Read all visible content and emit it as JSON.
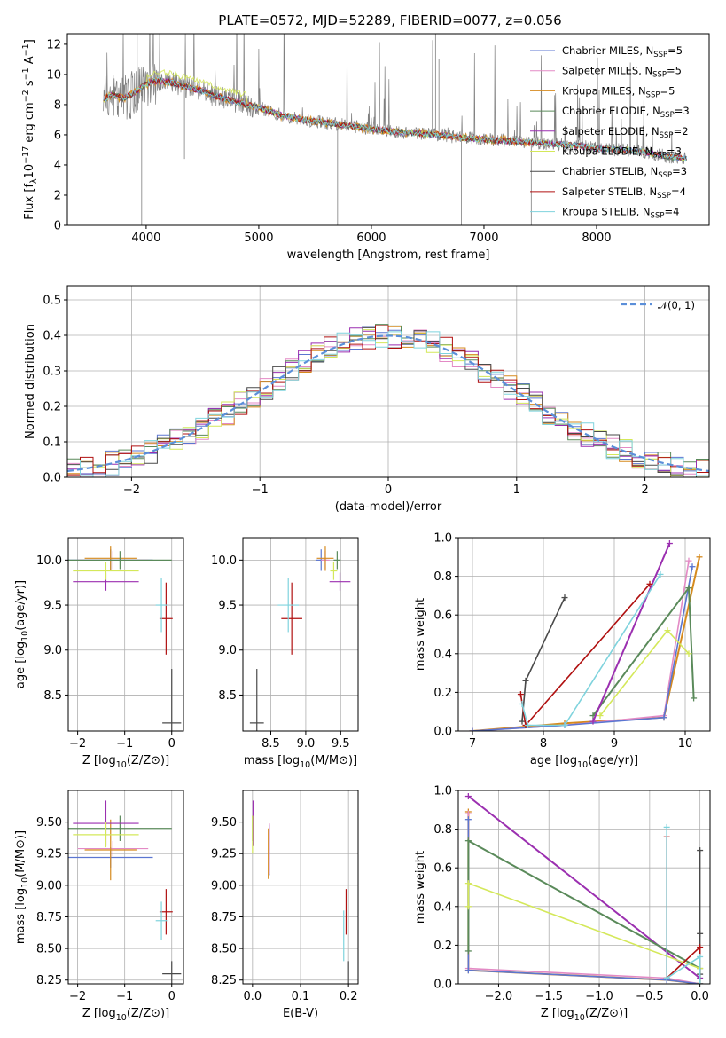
{
  "figure": {
    "title": "PLATE=0572, MJD=52289, FIBERID=0077, z=0.056"
  },
  "colors": {
    "Chabrier MILES": "#5b76d1",
    "Salpeter MILES": "#e38ac5",
    "Kroupa MILES": "#d68a1e",
    "Chabrier ELODIE": "#5a8a5a",
    "Salpeter ELODIE": "#9b2fb0",
    "Kroupa ELODIE": "#d4e85a",
    "Chabrier STELIB": "#4a4a4a",
    "Salpeter STELIB": "#b01010",
    "Kroupa STELIB": "#7fd3dd",
    "data": "#808080",
    "orange_model": "#e8742a"
  },
  "chart_data": [
    {
      "id": "spectrum",
      "type": "line",
      "xlabel": "wavelength [Angstrom, rest frame]",
      "ylabel": "Flux [f_λ 10^-17 erg cm^-2 s^-1 A^-1]",
      "xlim": [
        3300,
        9000
      ],
      "ylim": [
        0,
        12.7
      ],
      "xticks": [
        4000,
        5000,
        6000,
        7000,
        8000
      ],
      "yticks": [
        0,
        2,
        4,
        6,
        8,
        10,
        12
      ],
      "grid": false,
      "legend_position": "top-right",
      "legend": [
        {
          "label": "Chabrier MILES, N",
          "sub": "SSP",
          "suffix": "=5",
          "model": "Chabrier MILES"
        },
        {
          "label": "Salpeter MILES, N",
          "sub": "SSP",
          "suffix": "=5",
          "model": "Salpeter MILES"
        },
        {
          "label": "Kroupa MILES, N",
          "sub": "SSP",
          "suffix": "=5",
          "model": "Kroupa MILES"
        },
        {
          "label": "Chabrier ELODIE, N",
          "sub": "SSP",
          "suffix": "=3",
          "model": "Chabrier ELODIE"
        },
        {
          "label": "Salpeter ELODIE, N",
          "sub": "SSP",
          "suffix": "=2",
          "model": "Salpeter ELODIE"
        },
        {
          "label": "Kroupa ELODIE, N",
          "sub": "SSP",
          "suffix": "=3",
          "model": "Kroupa ELODIE"
        },
        {
          "label": "Chabrier STELIB, N",
          "sub": "SSP",
          "suffix": "=3",
          "model": "Chabrier STELIB"
        },
        {
          "label": "Salpeter STELIB, N",
          "sub": "SSP",
          "suffix": "=4",
          "model": "Salpeter STELIB"
        },
        {
          "label": "Kroupa STELIB, N",
          "sub": "SSP",
          "suffix": "=4",
          "model": "Kroupa STELIB"
        }
      ],
      "continuum": {
        "x": [
          3620,
          3700,
          3800,
          3900,
          4000,
          4100,
          4200,
          4300,
          4400,
          4500,
          4600,
          4700,
          4800,
          4900,
          5000,
          5200,
          5400,
          5600,
          5800,
          6000,
          6200,
          6400,
          6600,
          6800,
          7000,
          7200,
          7400,
          7600,
          7800,
          8000,
          8200,
          8400,
          8600,
          8800
        ],
        "y": [
          8.3,
          8.7,
          8.4,
          8.8,
          9.4,
          9.6,
          9.5,
          9.3,
          9.1,
          8.9,
          8.6,
          8.4,
          8.2,
          8.0,
          7.8,
          7.3,
          7.0,
          6.8,
          6.6,
          6.4,
          6.2,
          6.1,
          6.0,
          5.8,
          5.7,
          5.6,
          5.5,
          5.4,
          5.3,
          5.1,
          5.0,
          4.9,
          4.6,
          4.4
        ]
      }
    },
    {
      "id": "residuals",
      "type": "step",
      "xlabel": "(data-model)/error",
      "ylabel": "Normed distribution",
      "xlim": [
        -2.5,
        2.5
      ],
      "ylim": [
        0,
        0.54
      ],
      "xticks": [
        -2,
        -1,
        0,
        1,
        2
      ],
      "yticks": [
        0.0,
        0.1,
        0.2,
        0.3,
        0.4,
        0.5
      ],
      "grid": true,
      "bin_width": 0.1,
      "legend_position": "top-right",
      "legend": [
        {
          "label": "𝒩(0, 1)",
          "style": "dashed",
          "color": "#5b8fd9"
        }
      ],
      "normal": {
        "mu": 0,
        "sigma": 1
      }
    },
    {
      "id": "age-vs-Z",
      "type": "errorbar",
      "xlabel": "Z [log10(Z/Z⊙)]",
      "ylabel": "age  [log10(age/yr)]",
      "xlim": [
        -2.2,
        0.25
      ],
      "ylim": [
        8.1,
        10.25
      ],
      "xticks": [
        -2,
        -1,
        0
      ],
      "yticks": [
        8.5,
        9.0,
        9.5,
        10.0
      ],
      "grid": true,
      "points": [
        {
          "model": "Chabrier MILES",
          "x": -1.3,
          "xerr": 0.9,
          "y": 10.0,
          "yerr": 0.12
        },
        {
          "model": "Salpeter MILES",
          "x": -1.25,
          "xerr": 0.75,
          "y": 10.0,
          "yerr": 0.1
        },
        {
          "model": "Kroupa MILES",
          "x": -1.3,
          "xerr": 0.55,
          "y": 10.02,
          "yerr": 0.14
        },
        {
          "model": "Chabrier ELODIE",
          "x": -1.1,
          "xerr": 1.1,
          "y": 10.0,
          "yerr": 0.1
        },
        {
          "model": "Salpeter ELODIE",
          "x": -1.4,
          "xerr": 0.7,
          "y": 9.76,
          "yerr": 0.1
        },
        {
          "model": "Kroupa ELODIE",
          "x": -1.4,
          "xerr": 0.7,
          "y": 9.88,
          "yerr": 0.1
        },
        {
          "model": "Chabrier STELIB",
          "x": 0.0,
          "xerr": 0.2,
          "y": 8.19,
          "yerr": 0.6
        },
        {
          "model": "Salpeter STELIB",
          "x": -0.12,
          "xerr": 0.14,
          "y": 9.35,
          "yerr": 0.4
        },
        {
          "model": "Kroupa STELIB",
          "x": -0.22,
          "xerr": 0.12,
          "y": 9.5,
          "yerr": 0.3
        }
      ]
    },
    {
      "id": "age-vs-mass",
      "type": "errorbar",
      "xlabel": "mass [log10(M/M⊙)]",
      "ylabel": "",
      "xlim": [
        8.1,
        9.75
      ],
      "ylim": [
        8.1,
        10.25
      ],
      "xticks": [
        8.5,
        9.0,
        9.5
      ],
      "yticks": [
        8.5,
        9.0,
        9.5,
        10.0
      ],
      "grid": true,
      "points": [
        {
          "model": "Chabrier MILES",
          "x": 9.22,
          "xerr": 0.08,
          "y": 10.0,
          "yerr": 0.12
        },
        {
          "model": "Salpeter MILES",
          "x": 9.28,
          "xerr": 0.06,
          "y": 10.0,
          "yerr": 0.1
        },
        {
          "model": "Kroupa MILES",
          "x": 9.28,
          "xerr": 0.12,
          "y": 10.02,
          "yerr": 0.14
        },
        {
          "model": "Chabrier ELODIE",
          "x": 9.45,
          "xerr": 0.05,
          "y": 10.0,
          "yerr": 0.1
        },
        {
          "model": "Salpeter ELODIE",
          "x": 9.49,
          "xerr": 0.15,
          "y": 9.76,
          "yerr": 0.1
        },
        {
          "model": "Kroupa ELODIE",
          "x": 9.4,
          "xerr": 0.05,
          "y": 9.88,
          "yerr": 0.1
        },
        {
          "model": "Chabrier STELIB",
          "x": 8.3,
          "xerr": 0.1,
          "y": 8.19,
          "yerr": 0.6
        },
        {
          "model": "Salpeter STELIB",
          "x": 8.8,
          "xerr": 0.15,
          "y": 9.35,
          "yerr": 0.4
        },
        {
          "model": "Kroupa STELIB",
          "x": 8.75,
          "xerr": 0.15,
          "y": 9.5,
          "yerr": 0.3
        }
      ]
    },
    {
      "id": "weight-vs-age",
      "type": "line",
      "xlabel": "age  [log10(age/yr)]",
      "ylabel": "mass weight",
      "xlim": [
        6.8,
        10.35
      ],
      "ylim": [
        0,
        1.0
      ],
      "xticks": [
        7,
        8,
        9,
        10
      ],
      "yticks": [
        0.0,
        0.2,
        0.4,
        0.6,
        0.8,
        1.0
      ],
      "grid": true,
      "series": [
        {
          "model": "Kroupa MILES",
          "x": [
            7.0,
            8.3,
            9.7,
            10.2
          ],
          "y": [
            0.0,
            0.04,
            0.07,
            0.9
          ]
        },
        {
          "model": "Salpeter MILES",
          "x": [
            7.0,
            8.3,
            9.7,
            10.05
          ],
          "y": [
            0.0,
            0.03,
            0.08,
            0.88
          ]
        },
        {
          "model": "Chabrier MILES",
          "x": [
            7.0,
            8.3,
            9.7,
            10.1
          ],
          "y": [
            0.0,
            0.03,
            0.07,
            0.85
          ]
        },
        {
          "model": "Chabrier ELODIE",
          "x": [
            8.7,
            10.05,
            10.12
          ],
          "y": [
            0.08,
            0.74,
            0.17
          ]
        },
        {
          "model": "Salpeter ELODIE",
          "x": [
            8.7,
            9.78
          ],
          "y": [
            0.05,
            0.97
          ]
        },
        {
          "model": "Kroupa ELODIE",
          "x": [
            8.8,
            9.75,
            10.05
          ],
          "y": [
            0.08,
            0.52,
            0.4
          ]
        },
        {
          "model": "Chabrier STELIB",
          "x": [
            7.7,
            7.75,
            8.3
          ],
          "y": [
            0.05,
            0.26,
            0.69
          ]
        },
        {
          "model": "Salpeter STELIB",
          "x": [
            7.68,
            7.75,
            9.5
          ],
          "y": [
            0.19,
            0.03,
            0.76
          ]
        },
        {
          "model": "Kroupa STELIB",
          "x": [
            7.7,
            7.78,
            8.3,
            9.65
          ],
          "y": [
            0.14,
            0.03,
            0.03,
            0.81
          ]
        }
      ]
    },
    {
      "id": "mass-vs-Z",
      "type": "errorbar",
      "xlabel": "Z [log10(Z/Z⊙)]",
      "ylabel": "mass [log10(M/M⊙)]",
      "xlim": [
        -2.2,
        0.25
      ],
      "ylim": [
        8.22,
        9.75
      ],
      "xticks": [
        -2,
        -1,
        0
      ],
      "yticks": [
        8.25,
        8.5,
        8.75,
        9.0,
        9.25,
        9.5
      ],
      "grid": true,
      "points": [
        {
          "model": "Chabrier MILES",
          "x": -1.3,
          "xerr": 0.9,
          "y": 9.22,
          "yerr": 0.08
        },
        {
          "model": "Salpeter MILES",
          "x": -1.25,
          "xerr": 0.75,
          "y": 9.29,
          "yerr": 0.06
        },
        {
          "model": "Kroupa MILES",
          "x": -1.3,
          "xerr": 0.55,
          "y": 9.28,
          "yerr": 0.24
        },
        {
          "model": "Chabrier ELODIE",
          "x": -1.1,
          "xerr": 1.1,
          "y": 9.45,
          "yerr": 0.1
        },
        {
          "model": "Salpeter ELODIE",
          "x": -1.4,
          "xerr": 0.7,
          "y": 9.49,
          "yerr": 0.18
        },
        {
          "model": "Kroupa ELODIE",
          "x": -1.4,
          "xerr": 0.7,
          "y": 9.4,
          "yerr": 0.1
        },
        {
          "model": "Chabrier STELIB",
          "x": 0.0,
          "xerr": 0.2,
          "y": 8.3,
          "yerr": 0.1
        },
        {
          "model": "Salpeter STELIB",
          "x": -0.12,
          "xerr": 0.14,
          "y": 8.79,
          "yerr": 0.18
        },
        {
          "model": "Kroupa STELIB",
          "x": -0.22,
          "xerr": 0.12,
          "y": 8.72,
          "yerr": 0.15
        }
      ]
    },
    {
      "id": "mass-vs-EBV",
      "type": "errorbar",
      "xlabel": "E(B-V)",
      "ylabel": "",
      "xlim": [
        -0.02,
        0.22
      ],
      "ylim": [
        8.22,
        9.75
      ],
      "xticks": [
        0.0,
        0.1,
        0.2
      ],
      "yticks": [
        8.25,
        8.5,
        8.75,
        9.0,
        9.25,
        9.5
      ],
      "grid": true,
      "points": [
        {
          "model": "Chabrier MILES",
          "x": 0.035,
          "xerr": 0,
          "y": 9.28,
          "yerr": 0.2
        },
        {
          "model": "Salpeter MILES",
          "x": 0.035,
          "xerr": 0,
          "y": 9.29,
          "yerr": 0.2
        },
        {
          "model": "Kroupa MILES",
          "x": 0.033,
          "xerr": 0,
          "y": 9.25,
          "yerr": 0.2
        },
        {
          "model": "Chabrier ELODIE",
          "x": 0.0,
          "xerr": 0,
          "y": 9.45,
          "yerr": 0.1
        },
        {
          "model": "Salpeter ELODIE",
          "x": 0.001,
          "xerr": 0,
          "y": 9.49,
          "yerr": 0.18
        },
        {
          "model": "Kroupa ELODIE",
          "x": 0.0,
          "xerr": 0,
          "y": 9.4,
          "yerr": 0.15
        },
        {
          "model": "Chabrier STELIB",
          "x": 0.2,
          "xerr": 0,
          "y": 8.3,
          "yerr": 0.1
        },
        {
          "model": "Salpeter STELIB",
          "x": 0.195,
          "xerr": 0,
          "y": 8.79,
          "yerr": 0.18
        },
        {
          "model": "Kroupa STELIB",
          "x": 0.19,
          "xerr": 0,
          "y": 8.6,
          "yerr": 0.2
        }
      ]
    },
    {
      "id": "weight-vs-Z",
      "type": "line",
      "xlabel": "Z [log10(Z/Z⊙)]",
      "ylabel": "mass weight",
      "xlim": [
        -2.4,
        0.1
      ],
      "ylim": [
        0,
        1.0
      ],
      "xticks": [
        -2.0,
        -1.5,
        -1.0,
        -0.5,
        0.0
      ],
      "yticks": [
        0.0,
        0.2,
        0.4,
        0.6,
        0.8,
        1.0
      ],
      "grid": true,
      "series": [
        {
          "model": "Kroupa MILES",
          "x": [
            -2.3,
            -2.3,
            -0.33,
            0.0
          ],
          "y": [
            0.89,
            0.07,
            0.02,
            0.0
          ]
        },
        {
          "model": "Salpeter MILES",
          "x": [
            -2.3,
            -2.3,
            -0.33,
            0.0
          ],
          "y": [
            0.88,
            0.08,
            0.03,
            0.0
          ]
        },
        {
          "model": "Chabrier MILES",
          "x": [
            -2.3,
            -2.3,
            -0.33,
            0.0
          ],
          "y": [
            0.85,
            0.07,
            0.02,
            0.0
          ]
        },
        {
          "model": "Salpeter ELODIE",
          "x": [
            -2.3,
            0.0
          ],
          "y": [
            0.97,
            0.03
          ]
        },
        {
          "model": "Chabrier ELODIE",
          "x": [
            -2.3,
            -2.3,
            0.0,
            0.0
          ],
          "y": [
            0.17,
            0.74,
            0.08,
            0.0
          ]
        },
        {
          "model": "Kroupa ELODIE",
          "x": [
            -2.3,
            -2.3,
            0.0
          ],
          "y": [
            0.4,
            0.52,
            0.08
          ]
        },
        {
          "model": "Chabrier STELIB",
          "x": [
            0.0,
            0.0,
            0.0
          ],
          "y": [
            0.69,
            0.26,
            0.05
          ]
        },
        {
          "model": "Salpeter STELIB",
          "x": [
            -0.33,
            -0.33,
            0.0,
            0.0
          ],
          "y": [
            0.76,
            0.03,
            0.19,
            0.0
          ]
        },
        {
          "model": "Kroupa STELIB",
          "x": [
            -0.33,
            -0.33,
            0.0,
            0.0
          ],
          "y": [
            0.81,
            0.03,
            0.14,
            0.0
          ]
        }
      ]
    }
  ]
}
